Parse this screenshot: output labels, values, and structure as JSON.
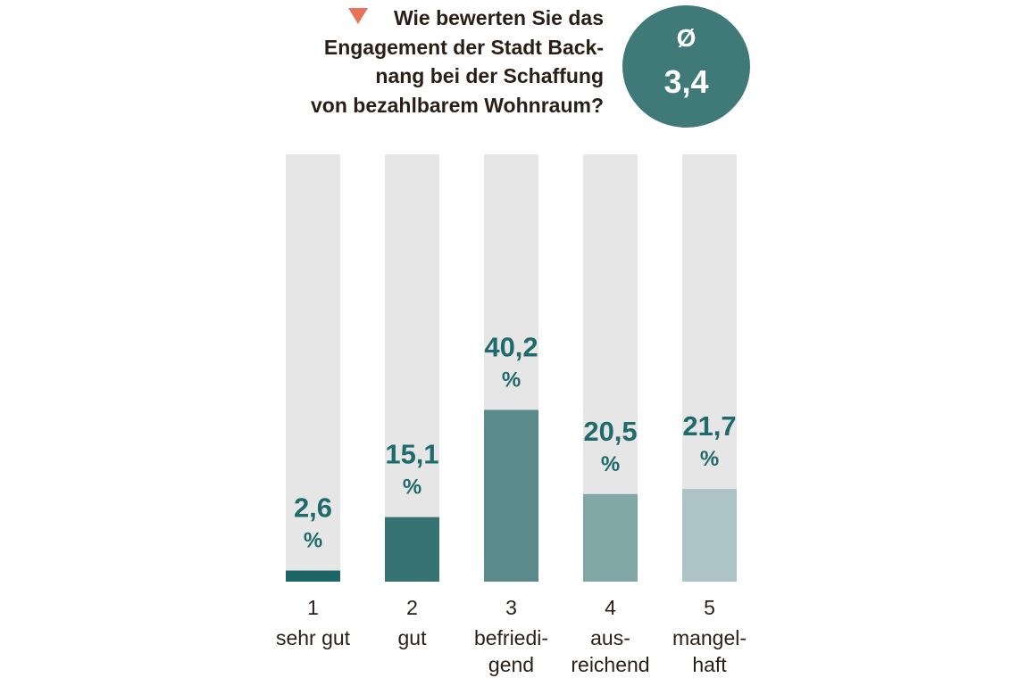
{
  "header": {
    "title_lines": [
      "Wie bewerten Sie das",
      "Engagement der Stadt Back-",
      "nang bei der Schaffung",
      "von bezahlbarem Wohnraum?"
    ],
    "marker_icon": "triangle-down-icon",
    "marker_color": "#e8735a"
  },
  "average": {
    "symbol": "Ø",
    "value": "3,4",
    "color": "#3f7a79"
  },
  "chart_data": {
    "type": "bar",
    "title": "Wie bewerten Sie das Engagement der Stadt Backnang bei der Schaffung von bezahlbarem Wohnraum?",
    "ylim": [
      0,
      100
    ],
    "unit": "%",
    "background_bar_color": "#e6e6e6",
    "value_label_color": "#1f6a6a",
    "category_label_color": "#2a1f17",
    "categories": [
      {
        "grade": "1",
        "lines": [
          "sehr gut"
        ]
      },
      {
        "grade": "2",
        "lines": [
          "gut"
        ]
      },
      {
        "grade": "3",
        "lines": [
          "befriedi-",
          "gend"
        ]
      },
      {
        "grade": "4",
        "lines": [
          "aus-",
          "reichend"
        ]
      },
      {
        "grade": "5",
        "lines": [
          "mangel-",
          "haft"
        ]
      }
    ],
    "values": [
      2.6,
      15.1,
      40.2,
      20.5,
      21.7
    ],
    "value_labels": [
      "2,6",
      "15,1",
      "40,2",
      "20,5",
      "21,7"
    ],
    "colors": [
      "#1e6567",
      "#357271",
      "#5a8b8a",
      "#81a6a6",
      "#adc4c7"
    ]
  }
}
